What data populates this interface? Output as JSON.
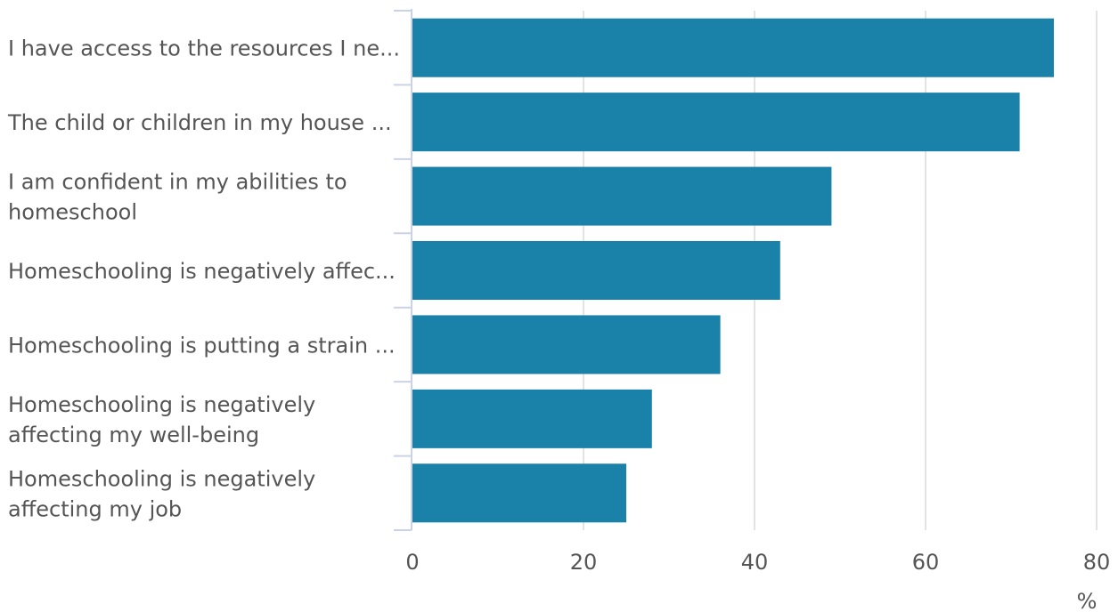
{
  "chart_data": {
    "type": "bar",
    "orientation": "horizontal",
    "categories": [
      "I have access to the resources I ne...",
      "The child or children in my house ...",
      "I am confident in my abilities to homeschool",
      "Homeschooling is negatively affec...",
      "Homeschooling is putting a strain ...",
      "Homeschooling is negatively affecting my well-being",
      "Homeschooling is negatively affecting my job"
    ],
    "category_lines": [
      [
        "I have access to the resources I ne..."
      ],
      [
        "The child or children in my house ..."
      ],
      [
        "I am confident in my abilities to",
        "homeschool"
      ],
      [
        "Homeschooling is negatively affec..."
      ],
      [
        "Homeschooling is putting a strain ..."
      ],
      [
        "Homeschooling is negatively",
        "affecting my well-being"
      ],
      [
        "Homeschooling is negatively",
        "affecting my job"
      ]
    ],
    "values": [
      75,
      71,
      49,
      43,
      36,
      28,
      25
    ],
    "xlim": [
      0,
      80
    ],
    "xticks": [
      "0",
      "20",
      "40",
      "60",
      "80"
    ],
    "unit": "%",
    "grid": true,
    "colors": {
      "bar": "#1a81a8",
      "grid": "#e3e3e3",
      "axis": "#c9d2e6",
      "text": "#555555"
    }
  }
}
